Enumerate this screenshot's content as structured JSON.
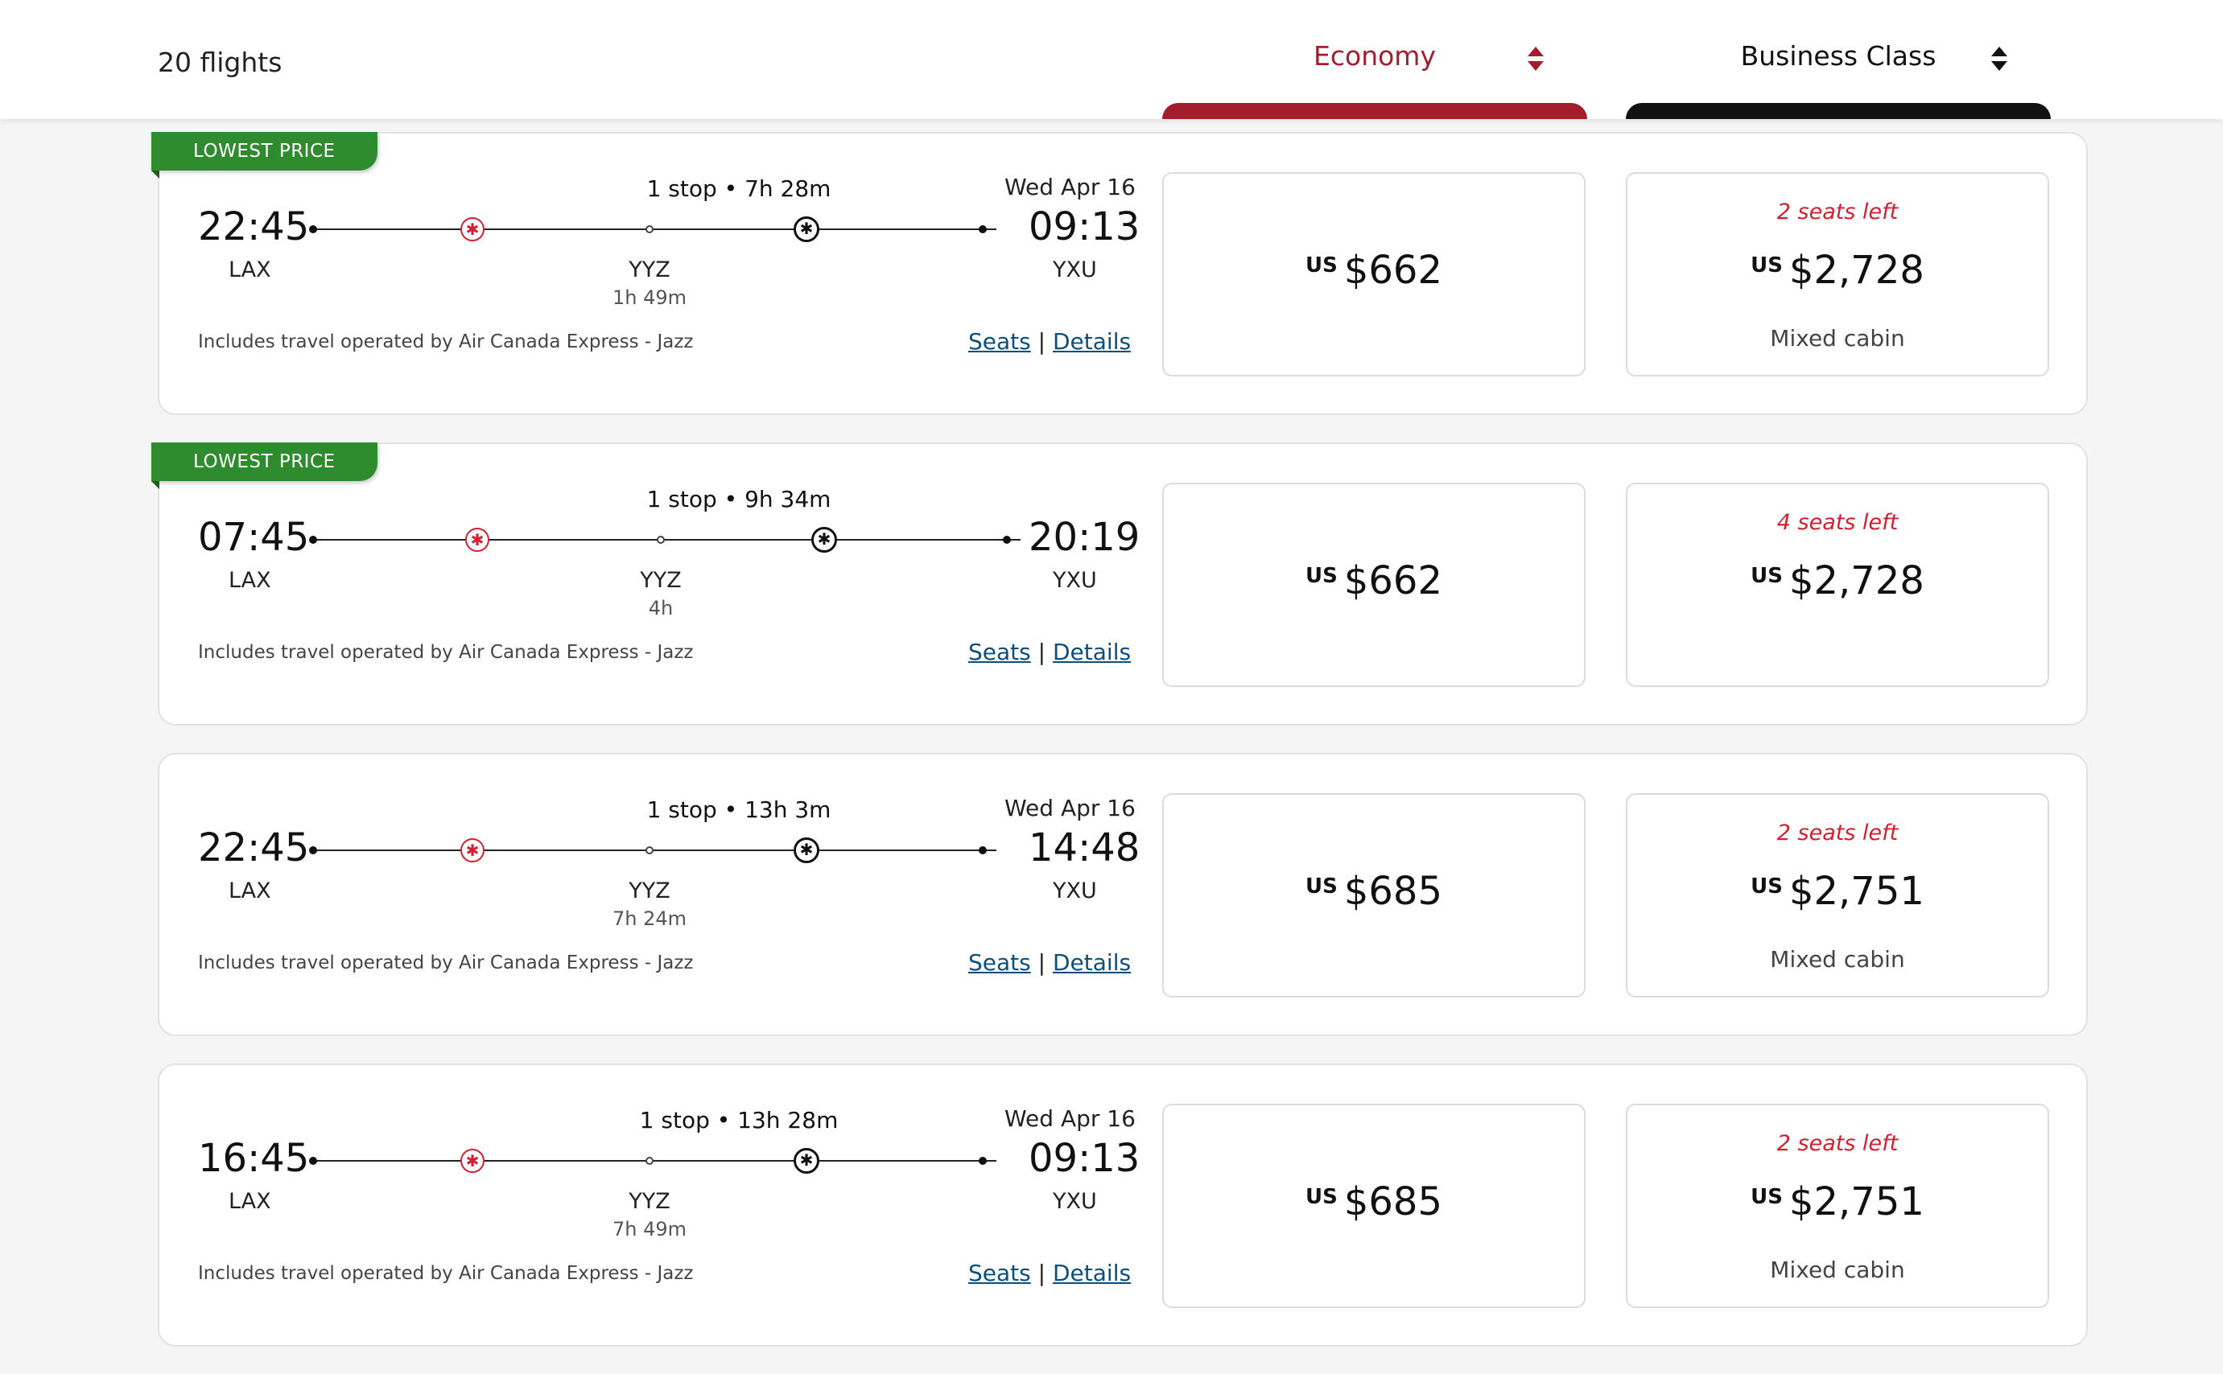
{
  "header": {
    "flight_count": "20 flights",
    "cabins": [
      {
        "label": "Economy"
      },
      {
        "label": "Business Class"
      }
    ]
  },
  "colors": {
    "accent": "#a51c2d",
    "badge_green": "#2e8b2e",
    "seats_red": "#d22030",
    "link_blue": "#0b4f7c"
  },
  "link_labels": {
    "seats": "Seats",
    "separator": "|",
    "details": "Details"
  },
  "currency": "US",
  "flights": [
    {
      "badge": "LOWEST PRICE",
      "departure_time": "22:45",
      "origin": "LAX",
      "stop_summary": "1 stop • 7h 28m",
      "stop_code": "YYZ",
      "layover": "1h 49m",
      "arrival_date": "Wed Apr 16",
      "arrival_time": "09:13",
      "destination": "YXU",
      "operator": "Includes travel operated by Air Canada Express - Jazz",
      "economy_price": "$662",
      "business_seats_left": "2 seats left",
      "business_price": "$2,728",
      "business_note": "Mixed cabin"
    },
    {
      "badge": "LOWEST PRICE",
      "departure_time": "07:45",
      "origin": "LAX",
      "stop_summary": "1 stop • 9h 34m",
      "stop_code": "YYZ",
      "layover": "4h",
      "arrival_date": "",
      "arrival_time": "20:19",
      "destination": "YXU",
      "operator": "Includes travel operated by Air Canada Express - Jazz",
      "economy_price": "$662",
      "business_seats_left": "4 seats left",
      "business_price": "$2,728",
      "business_note": ""
    },
    {
      "badge": "",
      "departure_time": "22:45",
      "origin": "LAX",
      "stop_summary": "1 stop • 13h 3m",
      "stop_code": "YYZ",
      "layover": "7h 24m",
      "arrival_date": "Wed Apr 16",
      "arrival_time": "14:48",
      "destination": "YXU",
      "operator": "Includes travel operated by Air Canada Express - Jazz",
      "economy_price": "$685",
      "business_seats_left": "2 seats left",
      "business_price": "$2,751",
      "business_note": "Mixed cabin"
    },
    {
      "badge": "",
      "departure_time": "16:45",
      "origin": "LAX",
      "stop_summary": "1 stop • 13h 28m",
      "stop_code": "YYZ",
      "layover": "7h 49m",
      "arrival_date": "Wed Apr 16",
      "arrival_time": "09:13",
      "destination": "YXU",
      "operator": "Includes travel operated by Air Canada Express - Jazz",
      "economy_price": "$685",
      "business_seats_left": "2 seats left",
      "business_price": "$2,751",
      "business_note": "Mixed cabin"
    }
  ]
}
